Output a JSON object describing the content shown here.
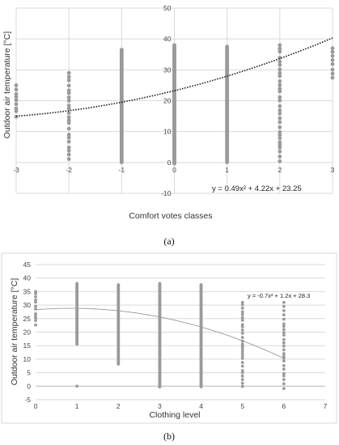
{
  "chart_data": [
    {
      "type": "scatter",
      "ylabel": "Outdoor air temperature [°C]",
      "xlabel": "Comfort votes classes",
      "xlim": [
        -3,
        3
      ],
      "ylim": [
        -10,
        50
      ],
      "xticks": [
        "-3",
        "-2",
        "-1",
        "0",
        "1",
        "2",
        "3"
      ],
      "yticks": [
        "-10",
        "0",
        "10",
        "20",
        "30",
        "40",
        "50"
      ],
      "trendline": {
        "type": "polynomial",
        "a": 0.49,
        "b": 4.22,
        "c": 23.25,
        "style": "dotted",
        "color": "#222222"
      },
      "equation": "y = 0.49x² + 4.22x + 23.25",
      "caption": "(a)",
      "marker_color": "#9a9a9a",
      "columns": [
        {
          "x": -3,
          "ranges": [
            [
              14.5,
              25
            ]
          ],
          "dense": false
        },
        {
          "x": -2,
          "ranges": [
            [
              0.5,
              29
            ]
          ],
          "dense": false
        },
        {
          "x": -1,
          "ranges": [
            [
              0,
              36.5
            ]
          ],
          "dense": true
        },
        {
          "x": 0,
          "ranges": [
            [
              -0.5,
              38
            ]
          ],
          "dense": true
        },
        {
          "x": 1,
          "ranges": [
            [
              0,
              37.5
            ]
          ],
          "dense": true
        },
        {
          "x": 2,
          "ranges": [
            [
              0,
              38
            ],
            [
              6.5,
              6.5
            ]
          ],
          "dense": false
        },
        {
          "x": 3,
          "ranges": [
            [
              27,
              37
            ]
          ],
          "dense": false
        }
      ]
    },
    {
      "type": "scatter",
      "ylabel": "Outdoor air temperature [°C]",
      "xlabel": "Clothing level",
      "xlim": [
        0,
        7
      ],
      "ylim": [
        -5,
        45
      ],
      "xticks": [
        "0",
        "1",
        "2",
        "3",
        "4",
        "5",
        "6",
        "7"
      ],
      "yticks": [
        "-5",
        "0",
        "5",
        "10",
        "15",
        "20",
        "25",
        "30",
        "35",
        "40",
        "45"
      ],
      "trendline": {
        "type": "polynomial",
        "a": -0.7,
        "b": 1.2,
        "c": 28.3,
        "xrange": [
          0,
          6
        ],
        "style": "solid",
        "color": "#9a9a9a"
      },
      "equation": "y = -0.7x² + 1.2x + 28.3",
      "caption": "(b)",
      "marker_color": "#9a9a9a",
      "columns": [
        {
          "x": 0,
          "ranges": [
            [
              21,
              35
            ]
          ],
          "dense": false
        },
        {
          "x": 1,
          "ranges": [
            [
              15.5,
              38
            ],
            [
              0,
              0
            ]
          ],
          "dense": true
        },
        {
          "x": 2,
          "ranges": [
            [
              8,
              37.5
            ]
          ],
          "dense": true
        },
        {
          "x": 3,
          "ranges": [
            [
              -0.5,
              38
            ]
          ],
          "dense": true
        },
        {
          "x": 4,
          "ranges": [
            [
              -0.5,
              37.5
            ]
          ],
          "dense": true
        },
        {
          "x": 5,
          "ranges": [
            [
              -0.5,
              31
            ]
          ],
          "dense": false
        },
        {
          "x": 6,
          "ranges": [
            [
              -1,
              31
            ]
          ],
          "dense": false
        }
      ]
    }
  ]
}
